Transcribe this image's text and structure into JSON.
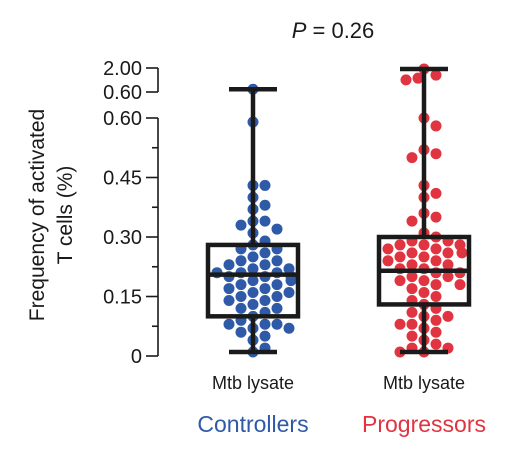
{
  "chart_data": {
    "type": "box",
    "stat_label": "P = 0.26",
    "ylabel_lines": [
      "Frequency of  activated",
      "T cells (%)"
    ],
    "yticks_main": [
      "0",
      "0.15",
      "0.30",
      "0.45",
      "0.60"
    ],
    "yticks_break": [
      "0.60",
      "2.00"
    ],
    "ylim": [
      0,
      0.6
    ],
    "break_range": [
      0.6,
      2.0
    ],
    "groups": [
      {
        "category": "Mtb lysate",
        "group_label": "Controllers",
        "color": "#2f5aa8",
        "whisker_low": 0.01,
        "q1": 0.1,
        "median": 0.205,
        "q3": 0.28,
        "whisker_high": 0.69,
        "points": [
          0.69,
          0.59,
          0.43,
          0.43,
          0.4,
          0.38,
          0.37,
          0.34,
          0.34,
          0.33,
          0.32,
          0.31,
          0.29,
          0.28,
          0.27,
          0.27,
          0.26,
          0.25,
          0.24,
          0.24,
          0.23,
          0.23,
          0.22,
          0.22,
          0.21,
          0.21,
          0.21,
          0.2,
          0.2,
          0.2,
          0.19,
          0.19,
          0.18,
          0.18,
          0.17,
          0.17,
          0.16,
          0.16,
          0.15,
          0.15,
          0.14,
          0.14,
          0.13,
          0.12,
          0.12,
          0.11,
          0.1,
          0.09,
          0.08,
          0.08,
          0.08,
          0.07,
          0.07,
          0.06,
          0.05,
          0.04,
          0.02,
          0.01
        ]
      },
      {
        "category": "Mtb lysate",
        "group_label": "Progressors",
        "color": "#e03440",
        "whisker_low": 0.01,
        "q1": 0.13,
        "median": 0.215,
        "q3": 0.3,
        "whisker_high": 1.9,
        "points": [
          1.9,
          1.4,
          1.2,
          1.1,
          0.6,
          0.58,
          0.52,
          0.51,
          0.5,
          0.43,
          0.41,
          0.4,
          0.36,
          0.35,
          0.34,
          0.31,
          0.3,
          0.29,
          0.29,
          0.28,
          0.28,
          0.28,
          0.27,
          0.27,
          0.26,
          0.26,
          0.26,
          0.25,
          0.25,
          0.24,
          0.24,
          0.23,
          0.23,
          0.22,
          0.22,
          0.21,
          0.21,
          0.2,
          0.2,
          0.19,
          0.19,
          0.18,
          0.18,
          0.17,
          0.16,
          0.15,
          0.14,
          0.13,
          0.12,
          0.11,
          0.1,
          0.1,
          0.09,
          0.08,
          0.08,
          0.07,
          0.06,
          0.05,
          0.04,
          0.03,
          0.02,
          0.02,
          0.01,
          0.01
        ]
      }
    ]
  }
}
